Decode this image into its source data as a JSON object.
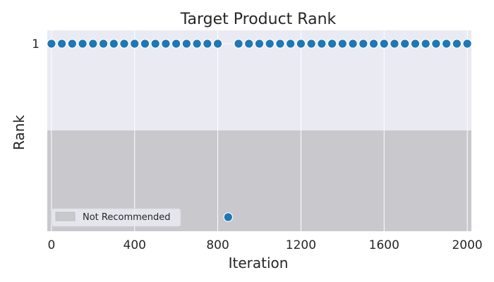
{
  "chart_data": {
    "type": "scatter",
    "title": "Target Product Rank",
    "xlabel": "Iteration",
    "ylabel": "Rank",
    "xlim": [
      -20,
      2020
    ],
    "xticks": [
      0,
      400,
      800,
      1200,
      1600,
      2000
    ],
    "xtick_labels": [
      "0",
      "400",
      "800",
      "1200",
      "1600",
      "2000"
    ],
    "yticks": [
      1
    ],
    "ytick_labels": [
      "1"
    ],
    "grid": true,
    "shaded_region": {
      "label": "Not Recommended"
    },
    "legend": {
      "position": "bottom-left",
      "entries": [
        "Not Recommended"
      ]
    },
    "series": [
      {
        "x": [
          0,
          50,
          100,
          150,
          200,
          250,
          300,
          350,
          400,
          450,
          500,
          550,
          600,
          650,
          700,
          750,
          800,
          850,
          900,
          950,
          1000,
          1050,
          1100,
          1150,
          1200,
          1250,
          1300,
          1350,
          1400,
          1450,
          1500,
          1550,
          1600,
          1650,
          1700,
          1750,
          1800,
          1850,
          1900,
          1950,
          2000
        ],
        "y": [
          1,
          1,
          1,
          1,
          1,
          1,
          1,
          1,
          1,
          1,
          1,
          1,
          1,
          1,
          1,
          1,
          1,
          "Not Recommended",
          1,
          1,
          1,
          1,
          1,
          1,
          1,
          1,
          1,
          1,
          1,
          1,
          1,
          1,
          1,
          1,
          1,
          1,
          1,
          1,
          1,
          1,
          1
        ],
        "color": "#1f77b4"
      }
    ],
    "colors": {
      "plot_bg": "#eaeaf2",
      "shade": "#c9c8cd",
      "grid": "#ffffff",
      "point": "#1f77b4"
    }
  }
}
